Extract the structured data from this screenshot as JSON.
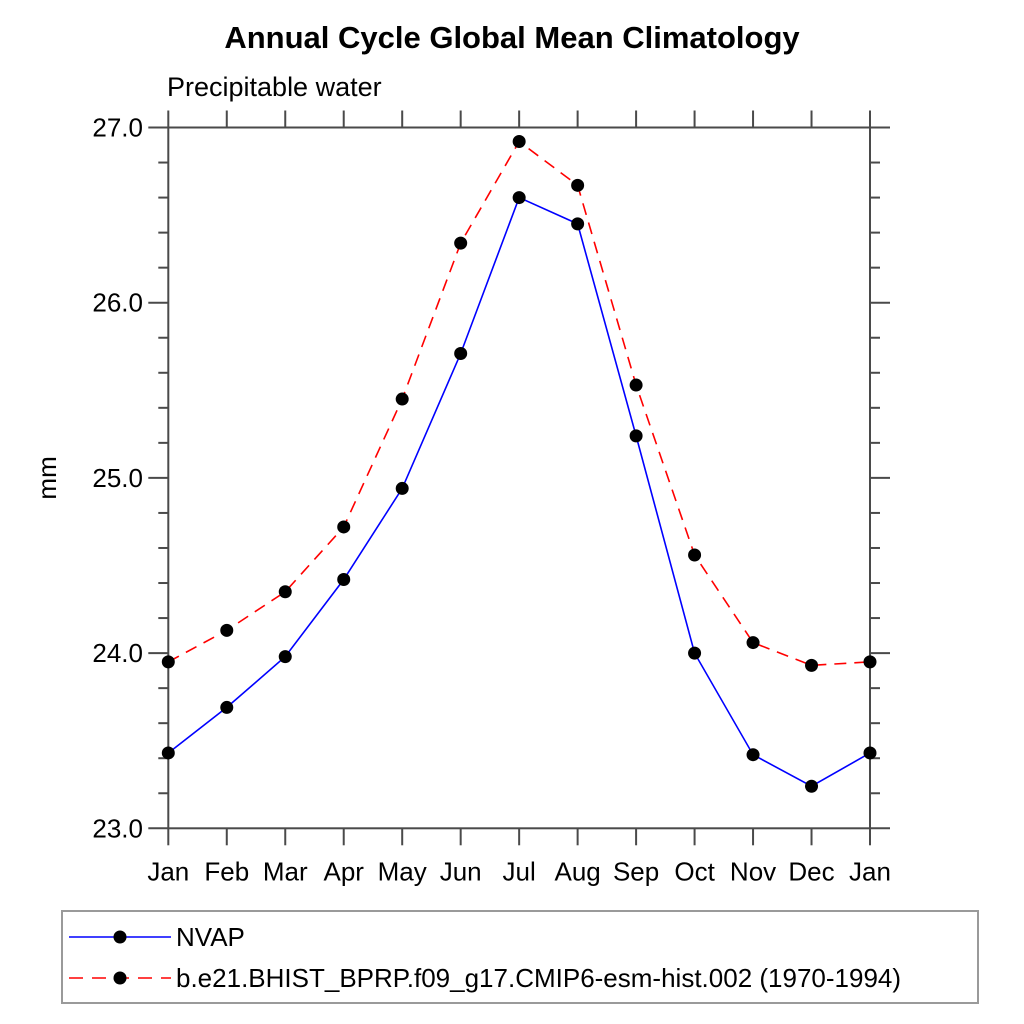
{
  "title": "Annual Cycle Global Mean Climatology",
  "subtitle": "Precipitable water",
  "colors": {
    "axis": "#4a4a4a",
    "nvap_line": "#0000ff",
    "model_line": "#ff0000",
    "marker": "#000000",
    "legend_border": "#9a9a9a"
  },
  "legend": {
    "items": [
      {
        "label": "NVAP",
        "color": "#0000ff",
        "dash": "solid"
      },
      {
        "label": "b.e21.BHIST_BPRP.f09_g17.CMIP6-esm-hist.002 (1970-1994)",
        "color": "#ff0000",
        "dash": "dashed"
      }
    ]
  },
  "chart_data": {
    "type": "line",
    "title": "Annual Cycle Global Mean Climatology",
    "subtitle": "Precipitable water",
    "xlabel": "",
    "ylabel": "mm",
    "categories": [
      "Jan",
      "Feb",
      "Mar",
      "Apr",
      "May",
      "Jun",
      "Jul",
      "Aug",
      "Sep",
      "Oct",
      "Nov",
      "Dec",
      "Jan"
    ],
    "ylim": [
      23.0,
      27.0
    ],
    "y_tick_labels": [
      "23.0",
      "24.0",
      "25.0",
      "26.0",
      "27.0"
    ],
    "y_minor_tick_step": 0.2,
    "grid": false,
    "legend_position": "bottom",
    "series": [
      {
        "name": "NVAP",
        "color": "#0000ff",
        "dash": "solid",
        "marker": "filled-circle",
        "values": [
          23.43,
          23.69,
          23.98,
          24.42,
          24.94,
          25.71,
          26.6,
          26.45,
          25.24,
          24.0,
          23.42,
          23.24,
          23.43
        ]
      },
      {
        "name": "b.e21.BHIST_BPRP.f09_g17.CMIP6-esm-hist.002 (1970-1994)",
        "color": "#ff0000",
        "dash": "dashed",
        "marker": "filled-circle",
        "values": [
          23.95,
          24.13,
          24.35,
          24.72,
          25.45,
          26.34,
          26.92,
          26.67,
          25.53,
          24.56,
          24.06,
          23.93,
          23.95
        ]
      }
    ]
  }
}
